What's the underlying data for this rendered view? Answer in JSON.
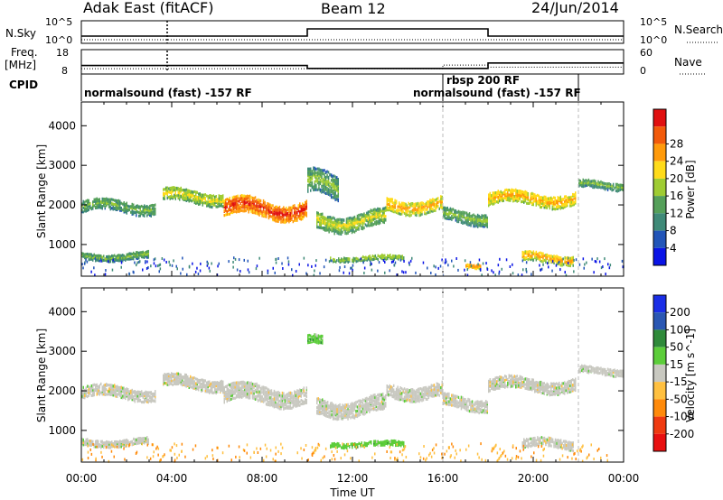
{
  "header": {
    "station": "Adak East (fitACF)",
    "beam": "Beam 12",
    "date": "24/Jun/2014"
  },
  "chart_data": [
    {
      "type": "line",
      "panel": "noise",
      "left_label": "N.Sky",
      "right_label": "N.Search",
      "left_ticks": [
        "10^5",
        "10^0"
      ],
      "right_ticks": [
        "10^5",
        "10^0"
      ],
      "series": [
        {
          "name": "N.Sky",
          "style": "solid",
          "x": [
            0,
            10,
            10,
            18,
            18,
            24
          ],
          "y_level": [
            "low",
            "low",
            "high",
            "high",
            "low",
            "low"
          ]
        },
        {
          "name": "N.Search",
          "style": "dotted"
        }
      ]
    },
    {
      "type": "line",
      "panel": "frequency",
      "left_label": "Freq.",
      "left_unit": "[MHz]",
      "right_label": "Nave",
      "cpid_label": "CPID",
      "left_ticks": [
        "18",
        "8"
      ],
      "right_ticks": [
        "60",
        "0"
      ],
      "series": [
        {
          "name": "Freq.",
          "style": "solid",
          "x": [
            0,
            10,
            10,
            18,
            18,
            24
          ],
          "y": [
            11.5,
            11.5,
            10.3,
            10.3,
            12.5,
            12.5
          ]
        },
        {
          "name": "Nave",
          "style": "dotted",
          "x": [
            0,
            16,
            16,
            18,
            18,
            24
          ],
          "y": [
            13,
            13,
            22,
            22,
            17,
            17
          ]
        }
      ],
      "cpid_segments": [
        {
          "label": "normalsound (fast) -157 RF",
          "start": 0,
          "end": 16
        },
        {
          "label": "rbsp 200 RF",
          "start": 16,
          "end": 18
        },
        {
          "label": "normalsound (fast) -157 RF",
          "start": 16,
          "end": 22
        }
      ]
    },
    {
      "type": "heatmap",
      "panel": "power",
      "ylabel": "Slant Range [km]",
      "yticks": [
        1000,
        2000,
        3000,
        4000
      ],
      "ylim": [
        200,
        4600
      ],
      "xlim": [
        0,
        24
      ],
      "colorbar": {
        "label": "Power [dB]",
        "ticks": [
          "4",
          "8",
          "12",
          "16",
          "20",
          "24",
          "28"
        ],
        "colors": [
          "#0a14e6",
          "#2255b8",
          "#3f8a78",
          "#55a05a",
          "#9fcc33",
          "#ffdb1a",
          "#ff9a0a",
          "#f25a0a",
          "#e01010"
        ]
      },
      "bands": [
        {
          "start": 0.0,
          "end": 3.3,
          "center": 2000,
          "width": 280,
          "level": 3
        },
        {
          "start": 3.6,
          "end": 6.3,
          "center": 2250,
          "width": 300,
          "level": 4
        },
        {
          "start": 6.3,
          "end": 10.0,
          "center": 1950,
          "width": 420,
          "level": 7
        },
        {
          "start": 10.0,
          "end": 11.4,
          "center": 2500,
          "width": 600,
          "level": 3
        },
        {
          "start": 10.4,
          "end": 13.5,
          "center": 1650,
          "width": 400,
          "level": 4
        },
        {
          "start": 13.5,
          "end": 16.0,
          "center": 2050,
          "width": 330,
          "level": 5
        },
        {
          "start": 16.0,
          "end": 18.0,
          "center": 1750,
          "width": 300,
          "level": 3
        },
        {
          "start": 18.0,
          "end": 21.9,
          "center": 2200,
          "width": 300,
          "level": 5
        },
        {
          "start": 22.0,
          "end": 24.0,
          "center": 2550,
          "width": 180,
          "level": 3
        },
        {
          "start": 0.0,
          "end": 3.0,
          "center": 750,
          "width": 160,
          "level": 3
        },
        {
          "start": 11.0,
          "end": 14.3,
          "center": 700,
          "width": 110,
          "level": 4
        },
        {
          "start": 17.0,
          "end": 17.7,
          "center": 480,
          "width": 80,
          "level": 6
        },
        {
          "start": 19.5,
          "end": 21.8,
          "center": 700,
          "width": 220,
          "level": 5
        }
      ]
    },
    {
      "type": "heatmap",
      "panel": "velocity",
      "ylabel": "Slant Range [km]",
      "yticks": [
        1000,
        2000,
        3000,
        4000
      ],
      "ylim": [
        200,
        4600
      ],
      "xlabel": "Time UT",
      "xticks": [
        "00:00",
        "04:00",
        "08:00",
        "12:00",
        "16:00",
        "20:00",
        "00:00"
      ],
      "colorbar": {
        "label": "Velocity [m s^-1]",
        "ticks": [
          "200",
          "100",
          "50",
          "15",
          "-15",
          "-50",
          "-100",
          "-200"
        ],
        "colors": [
          "#1a2ee6",
          "#2a57b3",
          "#2f8a3a",
          "#5ccd3a",
          "#c8c8c0",
          "#ffc040",
          "#ff8a0a",
          "#ef3a10",
          "#e81010"
        ]
      },
      "bands": [
        {
          "start": 0.0,
          "end": 3.3,
          "center": 2000,
          "width": 280,
          "level": 4
        },
        {
          "start": 3.6,
          "end": 6.3,
          "center": 2250,
          "width": 300,
          "level": 4
        },
        {
          "start": 6.3,
          "end": 10.0,
          "center": 1950,
          "width": 420,
          "level": 4
        },
        {
          "start": 10.0,
          "end": 10.7,
          "center": 3300,
          "width": 220,
          "level": 3
        },
        {
          "start": 10.4,
          "end": 13.5,
          "center": 1650,
          "width": 400,
          "level": 4
        },
        {
          "start": 13.5,
          "end": 16.0,
          "center": 2050,
          "width": 330,
          "level": 4
        },
        {
          "start": 16.0,
          "end": 18.0,
          "center": 1750,
          "width": 300,
          "level": 4
        },
        {
          "start": 18.0,
          "end": 21.9,
          "center": 2200,
          "width": 300,
          "level": 4
        },
        {
          "start": 22.0,
          "end": 24.0,
          "center": 2550,
          "width": 180,
          "level": 4
        },
        {
          "start": 0.0,
          "end": 3.0,
          "center": 750,
          "width": 160,
          "level": 4
        },
        {
          "start": 11.0,
          "end": 14.3,
          "center": 700,
          "width": 110,
          "level": 3
        },
        {
          "start": 19.5,
          "end": 21.8,
          "center": 700,
          "width": 220,
          "level": 4
        }
      ]
    }
  ]
}
